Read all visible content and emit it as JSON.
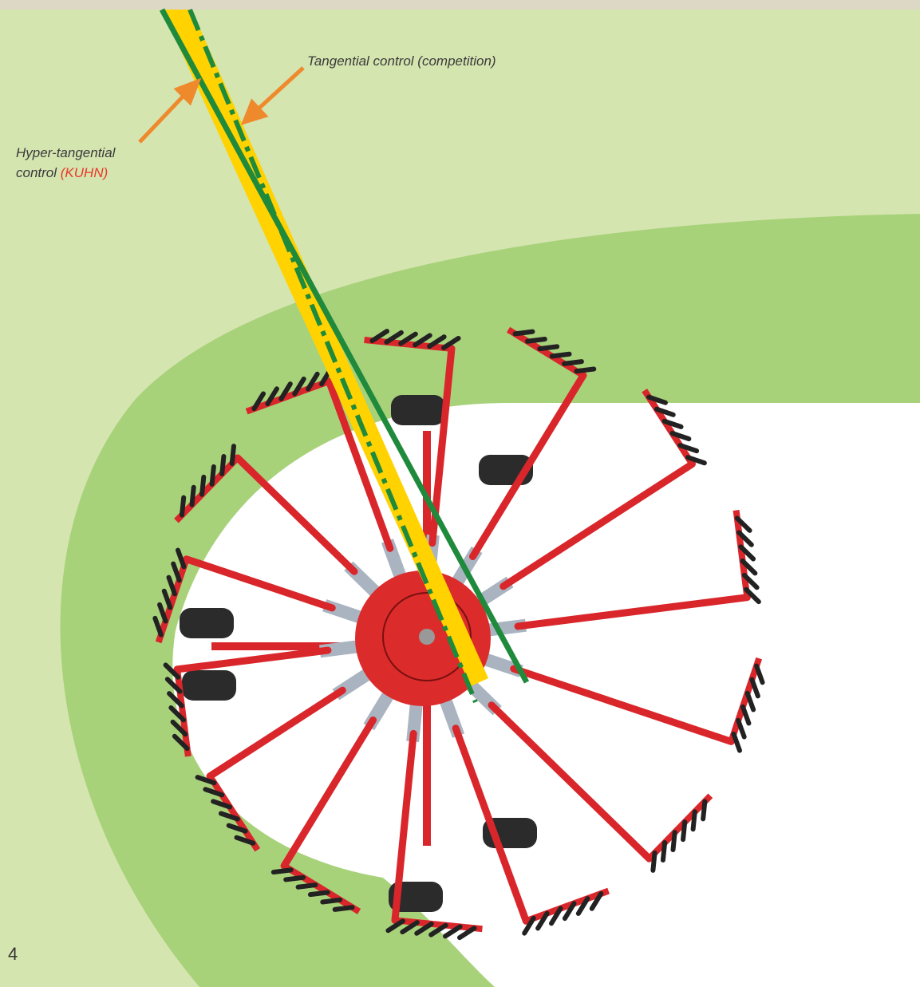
{
  "annotations": {
    "tangential": "Tangential control (competition)",
    "hyper_line1": "Hyper-tangential",
    "hyper_line2": "control",
    "kuhn": "(KUHN)"
  },
  "page_number": "4"
}
